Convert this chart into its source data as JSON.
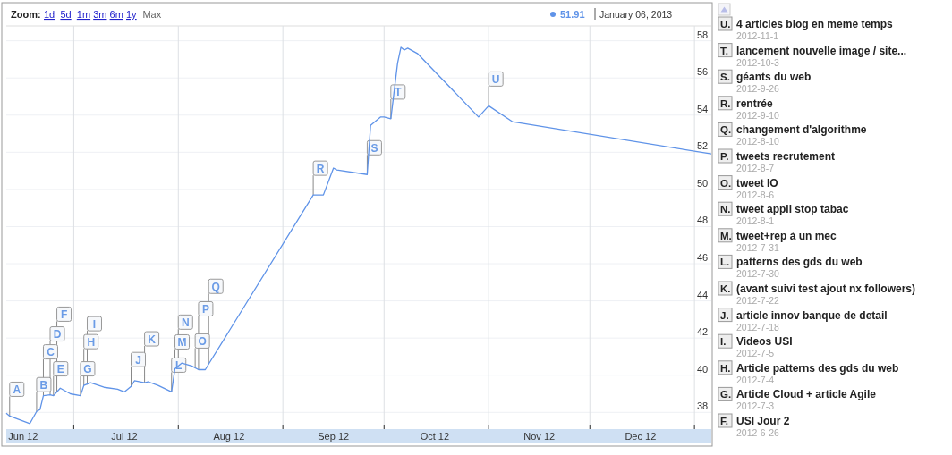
{
  "chart_data": {
    "type": "line",
    "x": [
      "2012-06-11",
      "2012-06-12",
      "2012-06-18",
      "2012-06-20",
      "2012-06-21",
      "2012-06-22",
      "2012-06-24",
      "2012-06-25",
      "2012-06-27",
      "2012-06-30",
      "2012-07-03",
      "2012-07-04",
      "2012-07-06",
      "2012-07-10",
      "2012-07-14",
      "2012-07-16",
      "2012-07-18",
      "2012-07-19",
      "2012-07-22",
      "2012-07-23",
      "2012-07-26",
      "2012-07-30",
      "2012-07-31",
      "2012-08-02",
      "2012-08-05",
      "2012-08-07",
      "2012-08-09",
      "2012-08-10",
      "2012-09-10",
      "2012-09-13",
      "2012-09-16",
      "2012-09-17",
      "2012-09-26",
      "2012-09-27",
      "2012-09-30",
      "2012-10-01",
      "2012-10-03",
      "2012-10-05",
      "2012-10-06",
      "2012-10-07",
      "2012-10-08",
      "2012-10-11",
      "2012-10-29",
      "2012-11-01",
      "2012-11-08",
      "2013-01-06"
    ],
    "series": [
      {
        "color": "#5f93e8",
        "values": [
          37.95,
          37.8,
          37.4,
          38.05,
          38.15,
          38.9,
          38.95,
          38.9,
          39.3,
          39.0,
          38.9,
          39.45,
          39.6,
          39.35,
          39.25,
          39.1,
          39.4,
          39.7,
          39.6,
          39.65,
          39.45,
          39.1,
          40.35,
          40.65,
          40.5,
          40.3,
          40.3,
          40.6,
          49.7,
          49.7,
          51.15,
          51.05,
          50.8,
          53.45,
          53.9,
          53.9,
          53.8,
          56.8,
          57.65,
          57.5,
          57.6,
          57.3,
          53.9,
          54.5,
          53.65,
          51.91
        ]
      }
    ],
    "xlim": [
      "2012-06-11",
      "2013-01-06"
    ],
    "xticks": [
      {
        "value": "2012-06-16",
        "label": "Jun 12"
      },
      {
        "value": "2012-07-01",
        "label": null
      },
      {
        "value": "2012-07-16",
        "label": "Jul 12"
      },
      {
        "value": "2012-08-01",
        "label": null
      },
      {
        "value": "2012-08-16",
        "label": "Aug 12"
      },
      {
        "value": "2012-09-01",
        "label": null
      },
      {
        "value": "2012-09-16",
        "label": "Sep 12"
      },
      {
        "value": "2012-10-01",
        "label": null
      },
      {
        "value": "2012-10-16",
        "label": "Oct 12"
      },
      {
        "value": "2012-11-01",
        "label": null
      },
      {
        "value": "2012-11-16",
        "label": "Nov 12"
      },
      {
        "value": "2012-12-01",
        "label": null
      },
      {
        "value": "2012-12-16",
        "label": "Dec 12"
      },
      {
        "value": "2013-01-01",
        "label": null
      }
    ],
    "ylim": [
      37.1,
      58.8
    ],
    "yticks": [
      38,
      40,
      42,
      44,
      46,
      48,
      50,
      52,
      54,
      56,
      58
    ],
    "grid": true,
    "annotations": [
      "Zoom: 1d 5d 1m 3m 6m 1y Max",
      "51.91",
      "January 06, 2013",
      {
        "text": "A",
        "x": "2012-06-12",
        "y": 37.8
      },
      {
        "text": "B",
        "x": "2012-06-20",
        "y": 38.05
      },
      {
        "text": "C",
        "x": "2012-06-22",
        "y": 38.9
      },
      {
        "text": "D",
        "x": "2012-06-24",
        "y": 38.95
      },
      {
        "text": "E",
        "x": "2012-06-25",
        "y": 38.9
      },
      {
        "text": "F",
        "x": "2012-06-26",
        "y": 39.1
      },
      {
        "text": "G",
        "x": "2012-07-03",
        "y": 38.9
      },
      {
        "text": "H",
        "x": "2012-07-04",
        "y": 39.45
      },
      {
        "text": "I",
        "x": "2012-07-05",
        "y": 39.5
      },
      {
        "text": "J",
        "x": "2012-07-18",
        "y": 39.4
      },
      {
        "text": "K",
        "x": "2012-07-22",
        "y": 39.6
      },
      {
        "text": "L",
        "x": "2012-07-30",
        "y": 39.1
      },
      {
        "text": "M",
        "x": "2012-07-31",
        "y": 40.35
      },
      {
        "text": "N",
        "x": "2012-08-01",
        "y": 40.5
      },
      {
        "text": "O",
        "x": "2012-08-06",
        "y": 40.4
      },
      {
        "text": "P",
        "x": "2012-08-07",
        "y": 40.3
      },
      {
        "text": "Q",
        "x": "2012-08-10",
        "y": 40.6
      },
      {
        "text": "R",
        "x": "2012-09-10",
        "y": 49.7
      },
      {
        "text": "S",
        "x": "2012-09-26",
        "y": 50.8
      },
      {
        "text": "T",
        "x": "2012-10-03",
        "y": 53.8
      },
      {
        "text": "U",
        "x": "2012-11-01",
        "y": 54.5
      },
      "U. 4 articles blog en meme temps",
      "2012-11-1",
      "T. lancement nouvelle image / site...",
      "2012-10-3",
      "S. géants du web",
      "2012-9-26",
      "R. rentrée",
      "2012-9-10",
      "Q. changement d'algorithme",
      "2012-8-10",
      "P. tweets recrutement",
      "2012-8-7",
      "O. tweet IO",
      "2012-8-6",
      "N. tweet appli stop tabac",
      "2012-8-1",
      "M. tweet+rep à un mec",
      "2012-7-31",
      "L. patterns des gds du web",
      "2012-7-30",
      "K. (avant suivi test ajout nx followers)",
      "2012-7-22",
      "J. article innov banque de detail",
      "2012-7-18",
      "I. Videos USI",
      "2012-7-5",
      "H. Article patterns des gds du web",
      "2012-7-4",
      "G. Article Cloud + article Agile",
      "2012-7-3",
      "F. USI Jour 2",
      "2012-6-26"
    ]
  }
}
